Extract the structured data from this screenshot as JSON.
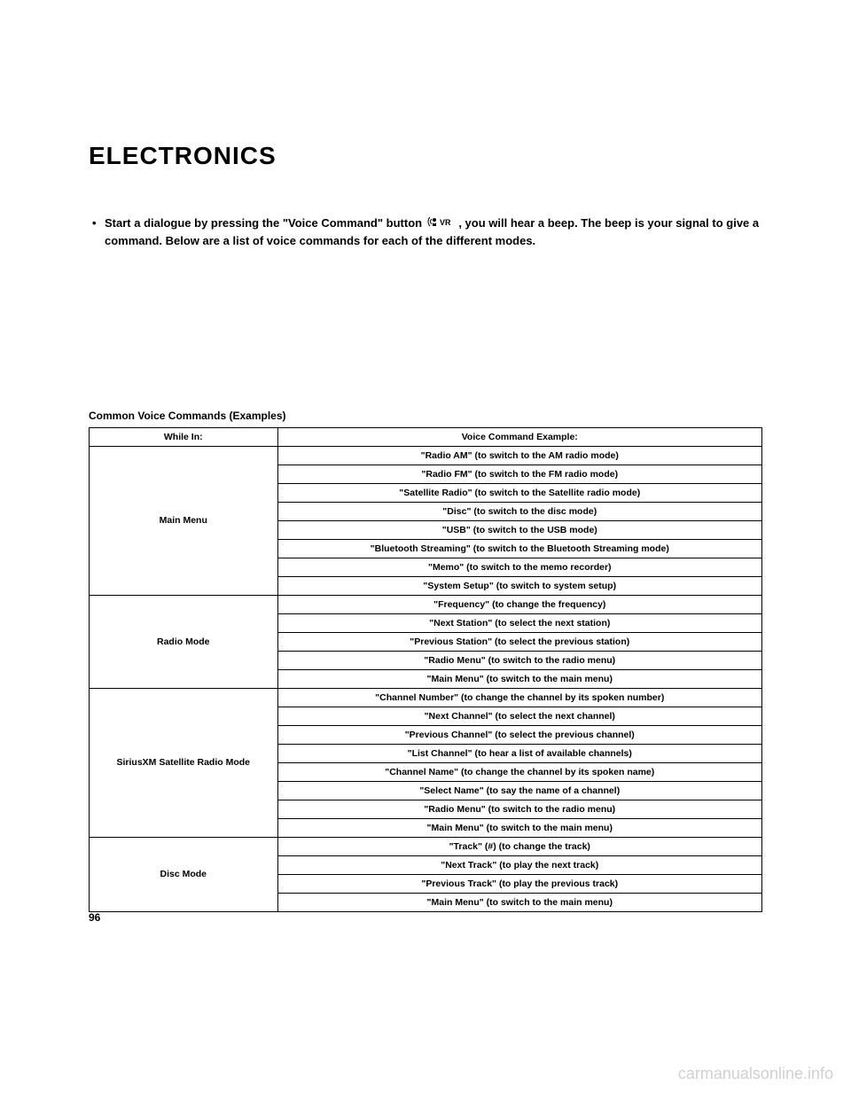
{
  "heading": "ELECTRONICS",
  "bullet_text_a": "Start a dialogue by pressing the \"Voice Command\" button ",
  "bullet_text_b": " , you will hear a beep. The beep is your signal to give a command. Below are a list of voice commands for each of the different modes.",
  "table_caption": "Common Voice Commands (Examples)",
  "headers": {
    "col1": "While In:",
    "col2": "Voice Command Example:"
  },
  "sections": [
    {
      "mode": "Main Menu",
      "commands": [
        "\"Radio AM\" (to switch to the AM radio mode)",
        "\"Radio FM\" (to switch to the FM radio mode)",
        "\"Satellite Radio\" (to switch to the Satellite radio mode)",
        "\"Disc\" (to switch to the disc mode)",
        "\"USB\" (to switch to the USB mode)",
        "\"Bluetooth Streaming\" (to switch to the Bluetooth Streaming mode)",
        "\"Memo\" (to switch to the memo recorder)",
        "\"System Setup\" (to switch to system setup)"
      ]
    },
    {
      "mode": "Radio Mode",
      "commands": [
        "\"Frequency\" (to change the frequency)",
        "\"Next Station\" (to select the next station)",
        "\"Previous Station\" (to select the previous station)",
        "\"Radio Menu\" (to switch to the radio menu)",
        "\"Main Menu\" (to switch to the main menu)"
      ]
    },
    {
      "mode": "SiriusXM Satellite Radio Mode",
      "commands": [
        "\"Channel Number\" (to change the channel by its spoken number)",
        "\"Next Channel\" (to select the next channel)",
        "\"Previous Channel\" (to select the previous channel)",
        "\"List Channel\" (to hear a list of available channels)",
        "\"Channel Name\" (to change the channel by its spoken name)",
        "\"Select Name\" (to say the name of a channel)",
        "\"Radio Menu\" (to switch to the radio menu)",
        "\"Main Menu\" (to switch to the main menu)"
      ]
    },
    {
      "mode": "Disc Mode",
      "commands": [
        "\"Track\" (#) (to change the track)",
        "\"Next Track\" (to play the next track)",
        "\"Previous Track\" (to play the previous track)",
        "\"Main Menu\" (to switch to the main menu)"
      ]
    }
  ],
  "page_number": "96",
  "watermark": "carmanualsonline.info"
}
